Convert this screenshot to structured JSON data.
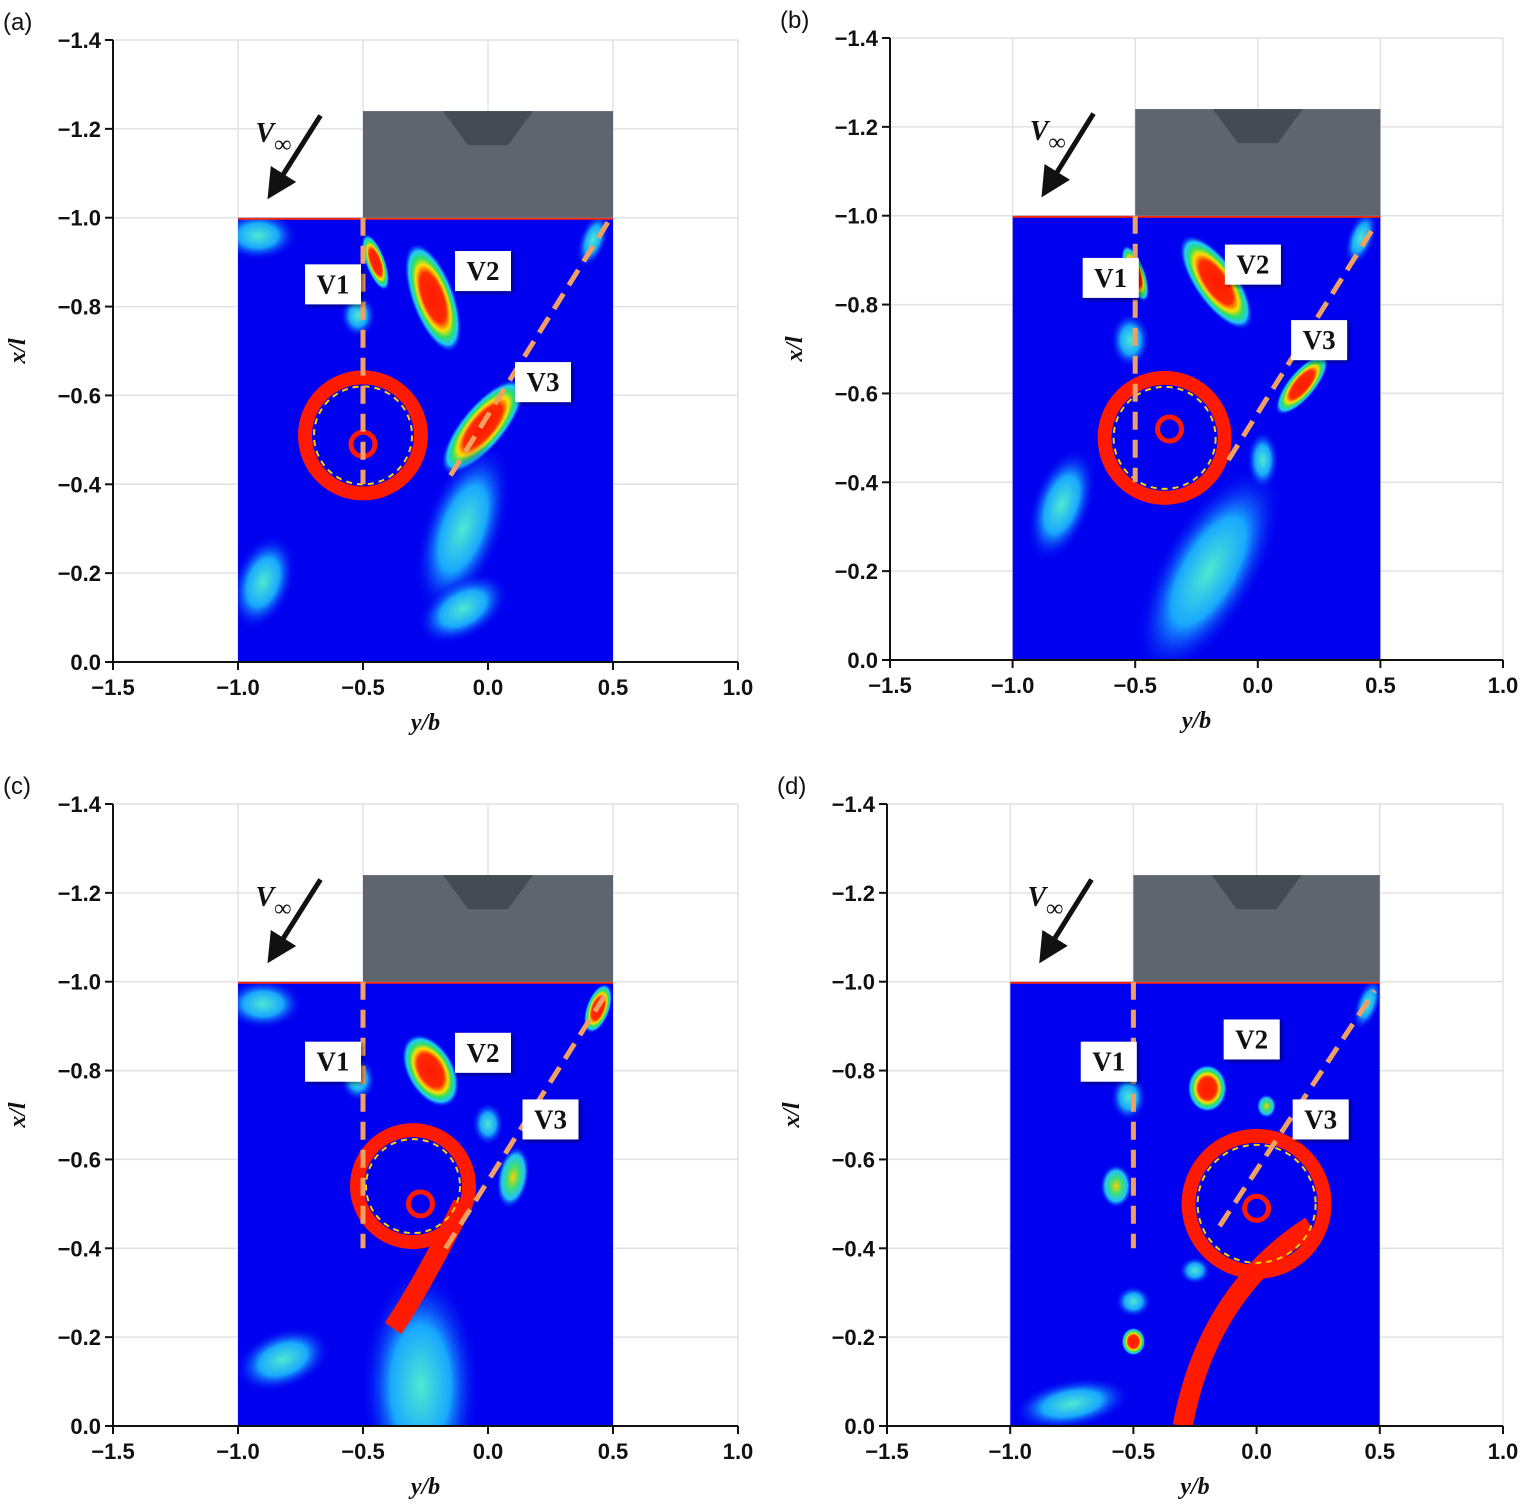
{
  "chart_data": [
    {
      "type": "contour",
      "panel_label": "(a)",
      "xlabel": "y/b",
      "ylabel": "x/l",
      "grid": true,
      "xlim": [
        -1.5,
        1.0
      ],
      "xticks": [
        {
          "value": -1.5,
          "label": "−1.5"
        },
        {
          "value": -1.0,
          "label": "−1.0"
        },
        {
          "value": -0.5,
          "label": "−0.5"
        },
        {
          "value": 0,
          "label": "0.0"
        },
        0.5,
        {
          "value": 1.0,
          "label": "1.0"
        }
      ],
      "ylim": [
        0,
        -1.4
      ],
      "yticks": [
        {
          "value": 0,
          "label": "0.0"
        },
        {
          "value": -0.2,
          "label": "−0.2"
        },
        {
          "value": -0.4,
          "label": "−0.4"
        },
        {
          "value": -0.6,
          "label": "−0.6"
        },
        {
          "value": -0.8,
          "label": "−0.8"
        },
        {
          "value": -1.0,
          "label": "−1.0"
        },
        {
          "value": -1.2,
          "label": "−1.2"
        },
        {
          "value": -1.4,
          "label": "−1.4"
        }
      ],
      "annotations": [
        "V1",
        "V2",
        "V3"
      ],
      "freestream": {
        "symbol": "V",
        "subscript": "∞"
      }
    },
    {
      "type": "contour",
      "panel_label": "(b)",
      "xlabel": "y/b",
      "ylabel": "x/l",
      "grid": true,
      "xlim": [
        -1.5,
        1.0
      ],
      "xticks": [
        {
          "value": -1.5,
          "label": "−1.5"
        },
        {
          "value": -1.0,
          "label": "−1.0"
        },
        {
          "value": -0.5,
          "label": "−0.5"
        },
        {
          "value": 0,
          "label": "0.0"
        },
        0.5,
        {
          "value": 1.0,
          "label": "1.0"
        }
      ],
      "ylim": [
        0,
        -1.4
      ],
      "yticks": [
        {
          "value": 0,
          "label": "0.0"
        },
        {
          "value": -0.2,
          "label": "−0.2"
        },
        {
          "value": -0.4,
          "label": "−0.4"
        },
        {
          "value": -0.6,
          "label": "−0.6"
        },
        {
          "value": -0.8,
          "label": "−0.8"
        },
        {
          "value": -1.0,
          "label": "−1.0"
        },
        {
          "value": -1.2,
          "label": "−1.2"
        },
        {
          "value": -1.4,
          "label": "−1.4"
        }
      ],
      "annotations": [
        "V1",
        "V2",
        "V3"
      ],
      "freestream": {
        "symbol": "V",
        "subscript": "∞"
      }
    },
    {
      "type": "contour",
      "panel_label": "(c)",
      "xlabel": "y/b",
      "ylabel": "x/l",
      "grid": true,
      "xlim": [
        -1.5,
        1.0
      ],
      "xticks": [
        {
          "value": -1.5,
          "label": "−1.5"
        },
        {
          "value": -1.0,
          "label": "−1.0"
        },
        {
          "value": -0.5,
          "label": "−0.5"
        },
        {
          "value": 0,
          "label": "0.0"
        },
        0.5,
        {
          "value": 1.0,
          "label": "1.0"
        }
      ],
      "ylim": [
        0,
        -1.4
      ],
      "yticks": [
        {
          "value": 0,
          "label": "0.0"
        },
        {
          "value": -0.2,
          "label": "−0.2"
        },
        {
          "value": -0.4,
          "label": "−0.4"
        },
        {
          "value": -0.6,
          "label": "−0.6"
        },
        {
          "value": -0.8,
          "label": "−0.8"
        },
        {
          "value": -1.0,
          "label": "−1.0"
        },
        {
          "value": -1.2,
          "label": "−1.2"
        },
        {
          "value": -1.4,
          "label": "−1.4"
        }
      ],
      "annotations": [
        "V1",
        "V2",
        "V3"
      ],
      "freestream": {
        "symbol": "V",
        "subscript": "∞"
      }
    },
    {
      "type": "contour",
      "panel_label": "(d)",
      "xlabel": "y/b",
      "ylabel": "x/l",
      "grid": true,
      "xlim": [
        -1.5,
        1.0
      ],
      "xticks": [
        {
          "value": -1.5,
          "label": "−1.5"
        },
        {
          "value": -1.0,
          "label": "−1.0"
        },
        {
          "value": -0.5,
          "label": "−0.5"
        },
        {
          "value": 0,
          "label": "0.0"
        },
        0.5,
        {
          "value": 1.0,
          "label": "1.0"
        }
      ],
      "ylim": [
        0,
        -1.4
      ],
      "yticks": [
        {
          "value": 0,
          "label": "0.0"
        },
        {
          "value": -0.2,
          "label": "−0.2"
        },
        {
          "value": -0.4,
          "label": "−0.4"
        },
        {
          "value": -0.6,
          "label": "−0.6"
        },
        {
          "value": -0.8,
          "label": "−0.8"
        },
        {
          "value": -1.0,
          "label": "−1.0"
        },
        {
          "value": -1.2,
          "label": "−1.2"
        },
        {
          "value": -1.4,
          "label": "−1.4"
        }
      ],
      "annotations": [
        "V1",
        "V2",
        "V3"
      ],
      "freestream": {
        "symbol": "V",
        "subscript": "∞"
      }
    }
  ]
}
